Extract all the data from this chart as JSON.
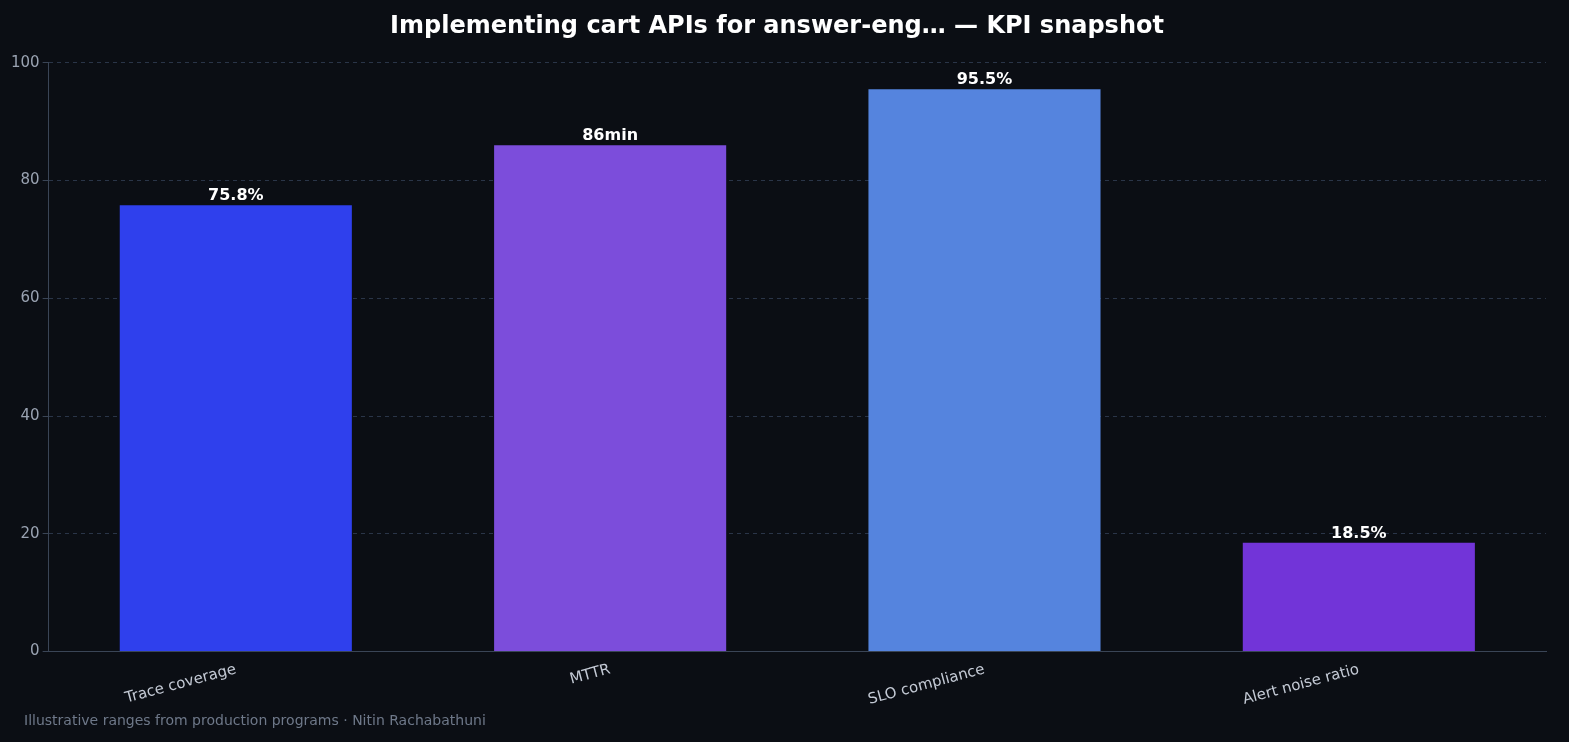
{
  "chart_data": {
    "type": "bar",
    "title": "Implementing cart APIs for answer-eng… — KPI snapshot",
    "categories": [
      "Trace coverage",
      "MTTR",
      "SLO compliance",
      "Alert noise ratio"
    ],
    "values": [
      75.8,
      86,
      95.5,
      18.5
    ],
    "colors": [
      "#2f40ed",
      "#7c4ddb",
      "#5584de",
      "#7234d8"
    ],
    "value_labels": [
      "75.8%",
      "86min",
      "95.5%",
      "18.5%"
    ],
    "ylim": [
      0,
      100
    ],
    "yticks": [
      0,
      20,
      40,
      60,
      80,
      100
    ],
    "grid": "y",
    "legend": false,
    "annotations": [
      "Illustrative ranges from production programs · Nitin Rachabathuni"
    ]
  }
}
